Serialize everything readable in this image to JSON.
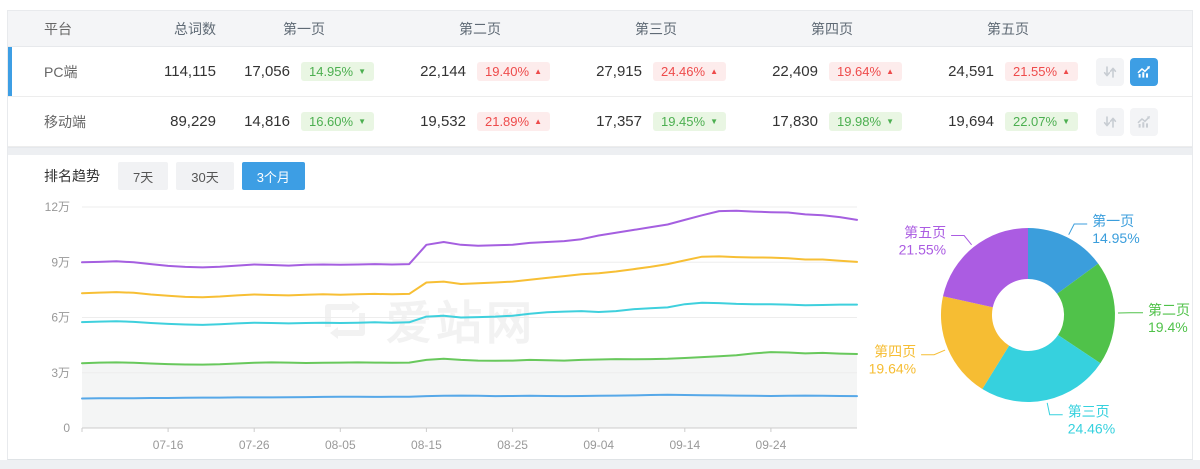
{
  "accent": "#3d9ee4",
  "icons": {
    "sort": "sort-arrows-icon",
    "chart": "bar-chart-icon"
  },
  "table": {
    "columns": [
      "平台",
      "总词数",
      "第一页",
      "第二页",
      "第三页",
      "第四页",
      "第五页"
    ],
    "rows": [
      {
        "platform": "PC端",
        "total": "114,115",
        "selected": true,
        "sort_active": false,
        "chart_active": true,
        "pages": [
          {
            "value": "17,056",
            "change": "14.95%",
            "dir": "down"
          },
          {
            "value": "22,144",
            "change": "19.40%",
            "dir": "up"
          },
          {
            "value": "27,915",
            "change": "24.46%",
            "dir": "up"
          },
          {
            "value": "22,409",
            "change": "19.64%",
            "dir": "up"
          },
          {
            "value": "24,591",
            "change": "21.55%",
            "dir": "up"
          }
        ]
      },
      {
        "platform": "移动端",
        "total": "89,229",
        "selected": false,
        "sort_active": false,
        "chart_active": false,
        "pages": [
          {
            "value": "14,816",
            "change": "16.60%",
            "dir": "down"
          },
          {
            "value": "19,532",
            "change": "21.89%",
            "dir": "up"
          },
          {
            "value": "17,357",
            "change": "19.45%",
            "dir": "down"
          },
          {
            "value": "17,830",
            "change": "19.98%",
            "dir": "down"
          },
          {
            "value": "19,694",
            "change": "22.07%",
            "dir": "down"
          }
        ]
      }
    ]
  },
  "trend": {
    "title": "排名趋势",
    "tabs": [
      {
        "label": "7天",
        "active": false
      },
      {
        "label": "30天",
        "active": false
      },
      {
        "label": "3个月",
        "active": true
      }
    ]
  },
  "watermark": "爱站网",
  "chart_data": [
    {
      "type": "line",
      "title": "排名趋势 (3个月, PC端累计词数)",
      "cumulative": true,
      "value_unit": "万",
      "ylim_wan": [
        0,
        12
      ],
      "y_tick_labels": [
        "0",
        "3万",
        "6万",
        "9万",
        "12万"
      ],
      "x_tick_labels": [
        "07-16",
        "07-26",
        "08-05",
        "08-15",
        "08-25",
        "09-04",
        "09-14",
        "09-24"
      ],
      "x_tick_indices": [
        5,
        10,
        15,
        20,
        25,
        30,
        35,
        40
      ],
      "grid": true,
      "series": [
        {
          "name": "第一页",
          "color": "#56a8e8",
          "area": false,
          "values": [
            1.6,
            1.61,
            1.62,
            1.62,
            1.63,
            1.63,
            1.64,
            1.65,
            1.65,
            1.66,
            1.66,
            1.66,
            1.67,
            1.68,
            1.69,
            1.7,
            1.7,
            1.69,
            1.7,
            1.7,
            1.73,
            1.75,
            1.76,
            1.75,
            1.73,
            1.74,
            1.75,
            1.74,
            1.73,
            1.74,
            1.75,
            1.76,
            1.77,
            1.79,
            1.8,
            1.79,
            1.78,
            1.77,
            1.76,
            1.75,
            1.74,
            1.75,
            1.76,
            1.75,
            1.74,
            1.73
          ]
        },
        {
          "name": "第二页",
          "color": "#68c85c",
          "area": true,
          "values": [
            3.52,
            3.55,
            3.56,
            3.54,
            3.5,
            3.47,
            3.45,
            3.44,
            3.46,
            3.5,
            3.54,
            3.56,
            3.55,
            3.53,
            3.54,
            3.55,
            3.56,
            3.55,
            3.54,
            3.55,
            3.7,
            3.76,
            3.7,
            3.66,
            3.65,
            3.66,
            3.7,
            3.68,
            3.66,
            3.7,
            3.72,
            3.74,
            3.73,
            3.74,
            3.76,
            3.8,
            3.85,
            3.9,
            3.95,
            4.05,
            4.12,
            4.1,
            4.05,
            4.08,
            4.04,
            4.02
          ]
        },
        {
          "name": "第三页",
          "color": "#3fd0dd",
          "area": false,
          "values": [
            5.75,
            5.78,
            5.8,
            5.76,
            5.7,
            5.65,
            5.62,
            5.6,
            5.63,
            5.68,
            5.72,
            5.7,
            5.68,
            5.7,
            5.72,
            5.7,
            5.72,
            5.74,
            5.72,
            5.74,
            6.05,
            6.1,
            6.0,
            6.02,
            6.05,
            6.1,
            6.2,
            6.28,
            6.32,
            6.35,
            6.3,
            6.35,
            6.45,
            6.5,
            6.55,
            6.72,
            6.8,
            6.78,
            6.74,
            6.72,
            6.72,
            6.7,
            6.66,
            6.68,
            6.7,
            6.7
          ]
        },
        {
          "name": "第四页",
          "color": "#f7bf35",
          "area": false,
          "values": [
            7.32,
            7.35,
            7.38,
            7.34,
            7.25,
            7.18,
            7.12,
            7.1,
            7.14,
            7.2,
            7.25,
            7.22,
            7.2,
            7.24,
            7.26,
            7.24,
            7.26,
            7.28,
            7.26,
            7.28,
            7.9,
            7.95,
            7.82,
            7.86,
            7.9,
            7.95,
            8.05,
            8.15,
            8.25,
            8.35,
            8.4,
            8.5,
            8.62,
            8.75,
            8.9,
            9.1,
            9.3,
            9.32,
            9.28,
            9.26,
            9.25,
            9.22,
            9.15,
            9.15,
            9.08,
            9.02
          ]
        },
        {
          "name": "第五页",
          "color": "#a55fe0",
          "area": false,
          "values": [
            9.0,
            9.02,
            9.05,
            9.0,
            8.9,
            8.8,
            8.75,
            8.72,
            8.76,
            8.82,
            8.88,
            8.85,
            8.82,
            8.86,
            8.88,
            8.86,
            8.88,
            8.9,
            8.88,
            8.9,
            9.95,
            10.1,
            9.95,
            9.9,
            9.92,
            9.95,
            10.05,
            10.1,
            10.15,
            10.25,
            10.45,
            10.6,
            10.75,
            10.9,
            11.05,
            11.3,
            11.55,
            11.78,
            11.8,
            11.75,
            11.72,
            11.7,
            11.6,
            11.55,
            11.45,
            11.3
          ]
        }
      ]
    },
    {
      "type": "pie",
      "donut": true,
      "slices": [
        {
          "label": "第一页",
          "pct": 14.95,
          "display": "14.95%",
          "color": "#3b9edc"
        },
        {
          "label": "第二页",
          "pct": 19.4,
          "display": "19.4%",
          "color": "#50c24a"
        },
        {
          "label": "第三页",
          "pct": 24.46,
          "display": "24.46%",
          "color": "#36d1de"
        },
        {
          "label": "第四页",
          "pct": 19.64,
          "display": "19.64%",
          "color": "#f6bd33"
        },
        {
          "label": "第五页",
          "pct": 21.55,
          "display": "21.55%",
          "color": "#ab5ce2"
        }
      ]
    }
  ]
}
